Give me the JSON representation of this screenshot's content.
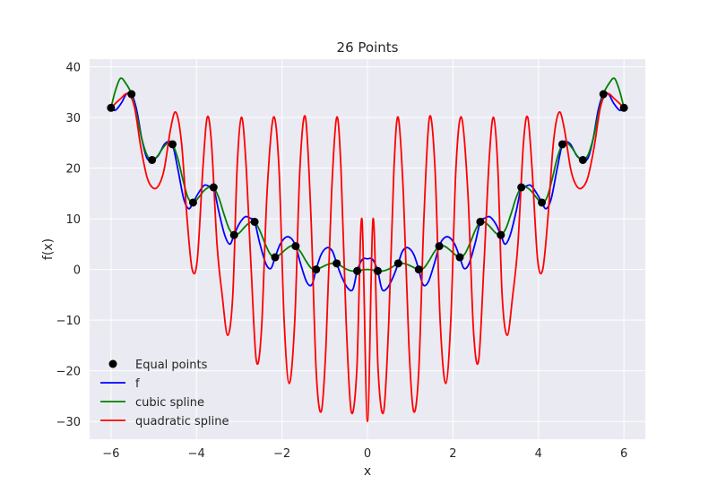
{
  "chart_data": {
    "type": "line",
    "title": "26 Points",
    "xlabel": "x",
    "ylabel": "f(x)",
    "xlim": [
      -6.5,
      6.5
    ],
    "ylim": [
      -33.5,
      41.5
    ],
    "xticks": [
      -6,
      -4,
      -2,
      0,
      2,
      4,
      6
    ],
    "yticks": [
      -30,
      -20,
      -10,
      0,
      10,
      20,
      30,
      40
    ],
    "xtick_labels": [
      "−6",
      "−4",
      "−2",
      "0",
      "2",
      "4",
      "6"
    ],
    "ytick_labels": [
      "−30",
      "−20",
      "−10",
      "0",
      "10",
      "20",
      "30",
      "40"
    ],
    "grid": true,
    "legend_position": "lower-left",
    "background_color": "#eaeaf2",
    "points": {
      "name": "Equal points",
      "color": "#000000",
      "x": [
        -6.0,
        -5.52,
        -5.04,
        -4.56,
        -4.08,
        -3.6,
        -3.12,
        -2.64,
        -2.16,
        -1.68,
        -1.2,
        -0.72,
        -0.24,
        0.24,
        0.72,
        1.2,
        1.68,
        2.16,
        2.64,
        3.12,
        3.6,
        4.08,
        4.56,
        5.04,
        5.52,
        6.0
      ],
      "y": [
        31.9,
        34.6,
        21.6,
        24.7,
        13.2,
        16.2,
        6.8,
        9.4,
        2.4,
        4.6,
        0.0,
        1.2,
        -0.3,
        -0.3,
        1.2,
        0.0,
        4.6,
        2.4,
        9.4,
        6.8,
        16.2,
        13.2,
        24.7,
        21.6,
        34.6,
        31.9
      ]
    },
    "series": [
      {
        "name": "f",
        "color": "#0000ff",
        "x": [
          -6.0,
          -5.9,
          -5.76,
          -5.64,
          -5.52,
          -5.4,
          -5.28,
          -5.16,
          -5.04,
          -4.9,
          -4.76,
          -4.66,
          -4.56,
          -4.44,
          -4.3,
          -4.18,
          -4.08,
          -3.96,
          -3.82,
          -3.7,
          -3.6,
          -3.48,
          -3.34,
          -3.22,
          -3.12,
          -3.0,
          -2.86,
          -2.74,
          -2.64,
          -2.52,
          -2.38,
          -2.26,
          -2.16,
          -2.04,
          -1.9,
          -1.78,
          -1.68,
          -1.56,
          -1.42,
          -1.3,
          -1.2,
          -1.08,
          -0.94,
          -0.82,
          -0.72,
          -0.6,
          -0.46,
          -0.34,
          -0.24,
          -0.12,
          0.0,
          0.12,
          0.24,
          0.34,
          0.46,
          0.6,
          0.72,
          0.82,
          0.94,
          1.08,
          1.2,
          1.3,
          1.42,
          1.56,
          1.68,
          1.78,
          1.9,
          2.04,
          2.16,
          2.26,
          2.38,
          2.52,
          2.64,
          2.74,
          2.86,
          3.0,
          3.12,
          3.22,
          3.34,
          3.48,
          3.6,
          3.7,
          3.82,
          3.96,
          4.08,
          4.18,
          4.3,
          4.44,
          4.56,
          4.66,
          4.76,
          4.9,
          5.04,
          5.16,
          5.28,
          5.4,
          5.52,
          5.64,
          5.76,
          5.9,
          6.0
        ],
        "y": [
          31.9,
          31.4,
          32.8,
          34.6,
          34.6,
          31.5,
          25.8,
          22.0,
          21.6,
          22.4,
          24.6,
          25.2,
          24.7,
          20.0,
          14.0,
          12.0,
          13.2,
          15.0,
          16.6,
          16.4,
          16.2,
          11.5,
          6.8,
          5.0,
          6.8,
          9.0,
          10.4,
          10.1,
          9.4,
          5.2,
          1.2,
          0.2,
          2.4,
          5.0,
          6.4,
          6.1,
          4.6,
          1.0,
          -2.5,
          -3.0,
          0.0,
          3.0,
          4.3,
          3.6,
          1.2,
          -1.5,
          -3.7,
          -3.9,
          -0.3,
          2.0,
          2.1,
          2.0,
          -0.3,
          -3.9,
          -3.7,
          -1.5,
          1.2,
          3.6,
          4.3,
          3.0,
          0.0,
          -3.0,
          -2.5,
          1.0,
          4.6,
          6.1,
          6.4,
          5.0,
          2.4,
          0.2,
          1.2,
          5.2,
          9.4,
          10.1,
          10.4,
          9.0,
          6.8,
          5.0,
          6.8,
          11.5,
          16.2,
          16.4,
          16.6,
          15.0,
          13.2,
          12.0,
          14.0,
          20.0,
          24.7,
          25.2,
          24.6,
          22.4,
          21.6,
          22.0,
          25.8,
          31.5,
          34.6,
          34.6,
          32.8,
          31.4,
          31.9
        ]
      },
      {
        "name": "cubic spline",
        "color": "#008000",
        "x": [
          -6.0,
          -5.9,
          -5.78,
          -5.66,
          -5.52,
          -5.4,
          -5.28,
          -5.16,
          -5.04,
          -4.92,
          -4.8,
          -4.68,
          -4.56,
          -4.44,
          -4.32,
          -4.2,
          -4.08,
          -3.96,
          -3.84,
          -3.72,
          -3.6,
          -3.48,
          -3.36,
          -3.24,
          -3.12,
          -3.0,
          -2.88,
          -2.76,
          -2.64,
          -2.52,
          -2.4,
          -2.28,
          -2.16,
          -2.04,
          -1.92,
          -1.8,
          -1.68,
          -1.56,
          -1.44,
          -1.32,
          -1.2,
          -1.08,
          -0.96,
          -0.84,
          -0.72,
          -0.6,
          -0.48,
          -0.36,
          -0.24,
          -0.12,
          0.0,
          0.12,
          0.24,
          0.36,
          0.48,
          0.6,
          0.72,
          0.84,
          0.96,
          1.08,
          1.2,
          1.32,
          1.44,
          1.56,
          1.68,
          1.8,
          1.92,
          2.04,
          2.16,
          2.28,
          2.4,
          2.52,
          2.64,
          2.76,
          2.88,
          3.0,
          3.12,
          3.24,
          3.36,
          3.48,
          3.6,
          3.72,
          3.84,
          3.96,
          4.08,
          4.2,
          4.32,
          4.44,
          4.56,
          4.68,
          4.8,
          4.92,
          5.04,
          5.16,
          5.28,
          5.4,
          5.52,
          5.66,
          5.78,
          5.9,
          6.0
        ],
        "y": [
          31.9,
          35.2,
          37.7,
          36.8,
          34.6,
          30.5,
          25.8,
          22.6,
          21.6,
          22.3,
          23.8,
          24.9,
          24.7,
          22.0,
          17.8,
          14.2,
          13.2,
          14.1,
          15.4,
          16.2,
          16.2,
          14.2,
          11.0,
          8.1,
          6.8,
          7.2,
          8.3,
          9.2,
          9.4,
          7.7,
          5.2,
          3.1,
          2.4,
          3.0,
          3.9,
          4.6,
          4.6,
          3.4,
          1.7,
          0.3,
          0.0,
          0.4,
          0.9,
          1.2,
          1.2,
          0.6,
          0.0,
          -0.3,
          -0.3,
          -0.1,
          0.0,
          -0.1,
          -0.3,
          -0.3,
          0.0,
          0.6,
          1.2,
          1.2,
          0.9,
          0.4,
          0.0,
          0.3,
          1.7,
          3.4,
          4.6,
          4.6,
          3.9,
          3.0,
          2.4,
          3.1,
          5.2,
          7.7,
          9.4,
          9.2,
          8.3,
          7.2,
          6.8,
          8.1,
          11.0,
          14.2,
          16.2,
          16.2,
          15.4,
          14.1,
          13.2,
          14.2,
          17.8,
          22.0,
          24.7,
          24.9,
          23.8,
          22.3,
          21.6,
          22.6,
          25.8,
          30.5,
          34.6,
          36.8,
          37.7,
          35.2,
          31.9
        ]
      },
      {
        "name": "quadratic spline",
        "color": "#ff0000",
        "x": [
          -6.0,
          -5.8,
          -5.6,
          -5.45,
          -5.3,
          -5.15,
          -5.0,
          -4.87,
          -4.75,
          -4.6,
          -4.48,
          -4.35,
          -4.22,
          -4.1,
          -3.98,
          -3.85,
          -3.75,
          -3.65,
          -3.52,
          -3.4,
          -3.27,
          -3.15,
          -3.05,
          -2.95,
          -2.85,
          -2.72,
          -2.6,
          -2.48,
          -2.35,
          -2.2,
          -2.07,
          -1.95,
          -1.83,
          -1.7,
          -1.58,
          -1.45,
          -1.32,
          -1.2,
          -1.08,
          -0.97,
          -0.84,
          -0.72,
          -0.62,
          -0.5,
          -0.38,
          -0.25,
          -0.13,
          0.0,
          0.13,
          0.25,
          0.38,
          0.5,
          0.62,
          0.72,
          0.84,
          0.97,
          1.08,
          1.2,
          1.32,
          1.45,
          1.58,
          1.7,
          1.83,
          1.95,
          2.07,
          2.2,
          2.35,
          2.48,
          2.6,
          2.72,
          2.85,
          2.95,
          3.05,
          3.15,
          3.27,
          3.4,
          3.52,
          3.65,
          3.75,
          3.85,
          3.98,
          4.1,
          4.22,
          4.35,
          4.48,
          4.6,
          4.75,
          4.87,
          5.0,
          5.15,
          5.3,
          5.45,
          5.6,
          5.8,
          6.0
        ],
        "y": [
          31.9,
          33.5,
          34.7,
          32.0,
          24.0,
          18.0,
          16.0,
          16.8,
          20.0,
          28.0,
          31.0,
          25.0,
          10.0,
          0.0,
          2.0,
          20.0,
          30.0,
          25.0,
          5.0,
          -5.0,
          -13.0,
          -5.0,
          20.0,
          30.0,
          22.0,
          0.0,
          -18.0,
          -12.0,
          15.0,
          30.0,
          20.0,
          -10.0,
          -22.5,
          -10.0,
          20.0,
          30.0,
          10.0,
          -20.0,
          -28.0,
          -15.0,
          15.0,
          30.0,
          20.0,
          -10.0,
          -28.0,
          -20.0,
          10.0,
          -30.0,
          10.0,
          -20.0,
          -28.0,
          -10.0,
          20.0,
          30.0,
          15.0,
          -15.0,
          -28.0,
          -20.0,
          10.0,
          30.0,
          20.0,
          -10.0,
          -22.5,
          -10.0,
          20.0,
          30.0,
          15.0,
          -12.0,
          -18.0,
          0.0,
          22.0,
          30.0,
          20.0,
          -5.0,
          -13.0,
          -5.0,
          5.0,
          25.0,
          30.0,
          20.0,
          2.0,
          0.0,
          10.0,
          25.0,
          31.0,
          28.0,
          20.0,
          16.8,
          16.0,
          18.0,
          24.0,
          32.0,
          34.7,
          33.5,
          31.9
        ]
      }
    ]
  }
}
